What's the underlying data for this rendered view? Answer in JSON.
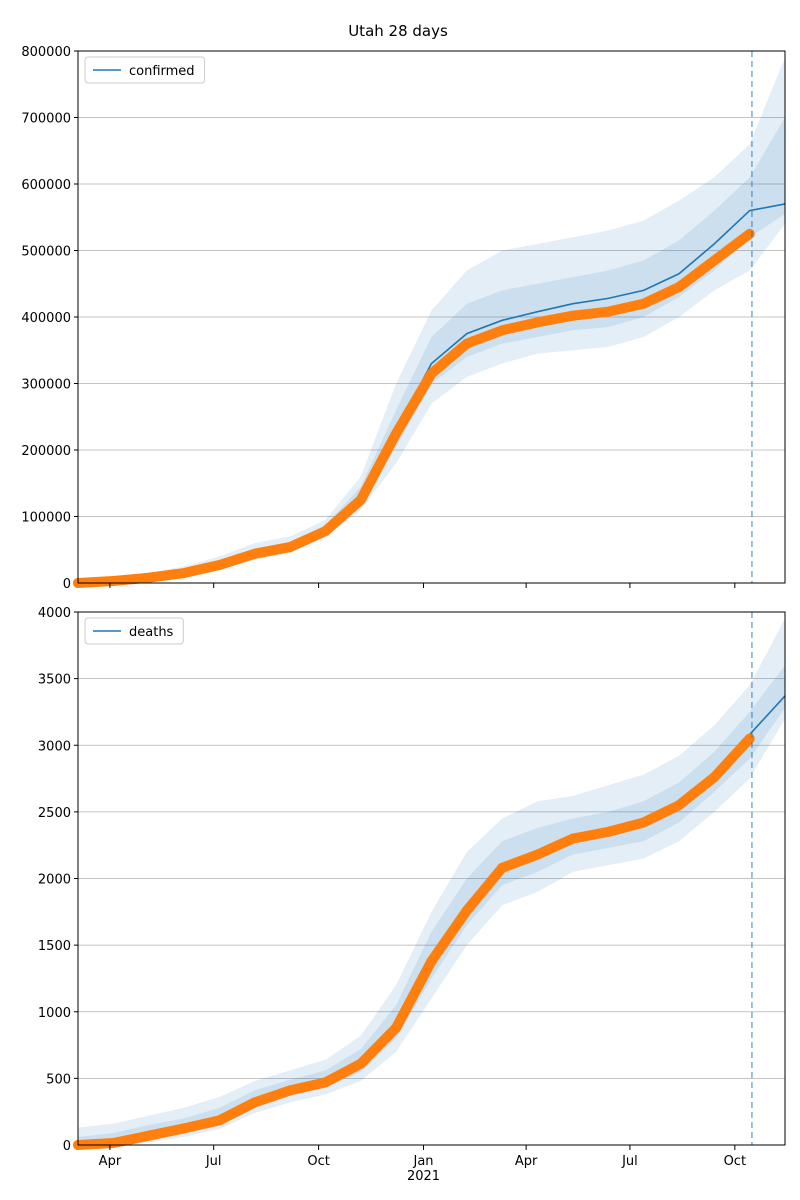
{
  "title": "Utah 28 days",
  "chart_data": [
    {
      "type": "line",
      "legend": "upper left",
      "grid": true,
      "vline": 591,
      "band_color": "#1f77b4",
      "xlim": [
        0,
        620
      ],
      "ylim": [
        0,
        800000
      ],
      "yticks": [
        0,
        100000,
        200000,
        300000,
        400000,
        500000,
        600000,
        700000,
        800000
      ],
      "x": [
        0,
        31,
        62,
        93,
        124,
        155,
        186,
        217,
        248,
        279,
        310,
        341,
        372,
        403,
        434,
        465,
        496,
        527,
        558,
        589,
        620
      ],
      "series": [
        {
          "name": "confirmed",
          "color": "#1f77b4",
          "values": [
            0,
            3000,
            8000,
            15000,
            28000,
            45000,
            55000,
            80000,
            130000,
            230000,
            330000,
            375000,
            395000,
            408000,
            420000,
            428000,
            440000,
            465000,
            510000,
            560000,
            570000
          ]
        }
      ],
      "observed": {
        "color": "#ff7f0e",
        "values": [
          0,
          3000,
          8000,
          15000,
          27000,
          44000,
          54000,
          78000,
          125000,
          225000,
          315000,
          360000,
          380000,
          392000,
          402000,
          408000,
          420000,
          445000,
          485000,
          525000,
          null
        ]
      },
      "bands": [
        {
          "lower": [
            0,
            1000,
            4000,
            10000,
            20000,
            35000,
            45000,
            70000,
            110000,
            180000,
            270000,
            310000,
            330000,
            345000,
            350000,
            355000,
            370000,
            400000,
            440000,
            470000,
            540000
          ],
          "upper": [
            5000,
            8000,
            15000,
            25000,
            40000,
            60000,
            70000,
            95000,
            160000,
            300000,
            410000,
            470000,
            500000,
            510000,
            520000,
            530000,
            545000,
            575000,
            610000,
            660000,
            790000
          ]
        },
        {
          "lower": [
            1000,
            2000,
            6000,
            12000,
            24000,
            40000,
            50000,
            75000,
            120000,
            205000,
            300000,
            340000,
            360000,
            370000,
            380000,
            385000,
            400000,
            430000,
            470000,
            520000,
            555000
          ],
          "upper": [
            3000,
            5000,
            11000,
            19000,
            33000,
            52000,
            62000,
            87000,
            145000,
            260000,
            370000,
            420000,
            440000,
            450000,
            460000,
            470000,
            485000,
            515000,
            560000,
            610000,
            700000
          ]
        }
      ]
    },
    {
      "type": "line",
      "legend": "upper left",
      "grid": true,
      "vline": 591,
      "band_color": "#1f77b4",
      "xlim": [
        0,
        620
      ],
      "ylim": [
        0,
        4000
      ],
      "yticks": [
        0,
        500,
        1000,
        1500,
        2000,
        2500,
        3000,
        3500,
        4000
      ],
      "xticks": [
        {
          "value": 28,
          "label": "Apr"
        },
        {
          "value": 119,
          "label": "Jul"
        },
        {
          "value": 211,
          "label": "Oct"
        },
        {
          "value": 303,
          "label": "Jan"
        },
        {
          "value": 393,
          "label": "Apr"
        },
        {
          "value": 484,
          "label": "Jul"
        },
        {
          "value": 576,
          "label": "Oct"
        }
      ],
      "year_labels": [
        {
          "value": 303,
          "label": "2021"
        }
      ],
      "x": [
        0,
        31,
        62,
        93,
        124,
        155,
        186,
        217,
        248,
        279,
        310,
        341,
        372,
        403,
        434,
        465,
        496,
        527,
        558,
        589,
        620
      ],
      "series": [
        {
          "name": "deaths",
          "color": "#1f77b4",
          "values": [
            0,
            20,
            80,
            130,
            190,
            330,
            420,
            480,
            620,
            900,
            1400,
            1800,
            2100,
            2200,
            2310,
            2360,
            2430,
            2560,
            2780,
            3080,
            3370
          ]
        }
      ],
      "observed": {
        "color": "#ff7f0e",
        "values": [
          0,
          15,
          70,
          125,
          185,
          320,
          410,
          470,
          610,
          880,
          1380,
          1760,
          2080,
          2180,
          2300,
          2350,
          2420,
          2550,
          2760,
          3050,
          null
        ]
      },
      "bands": [
        {
          "lower": [
            0,
            0,
            20,
            60,
            120,
            240,
            320,
            380,
            480,
            700,
            1100,
            1500,
            1800,
            1900,
            2050,
            2100,
            2150,
            2280,
            2500,
            2750,
            3200
          ],
          "upper": [
            130,
            160,
            220,
            280,
            360,
            480,
            560,
            640,
            820,
            1200,
            1750,
            2200,
            2450,
            2580,
            2620,
            2700,
            2780,
            2920,
            3150,
            3450,
            3950
          ]
        },
        {
          "lower": [
            0,
            5,
            50,
            100,
            160,
            280,
            370,
            430,
            550,
            800,
            1250,
            1650,
            1950,
            2050,
            2180,
            2230,
            2280,
            2420,
            2650,
            2900,
            3280
          ],
          "upper": [
            60,
            90,
            150,
            200,
            280,
            410,
            490,
            560,
            720,
            1050,
            1600,
            2000,
            2280,
            2380,
            2450,
            2500,
            2580,
            2720,
            2950,
            3250,
            3600
          ]
        }
      ]
    }
  ]
}
